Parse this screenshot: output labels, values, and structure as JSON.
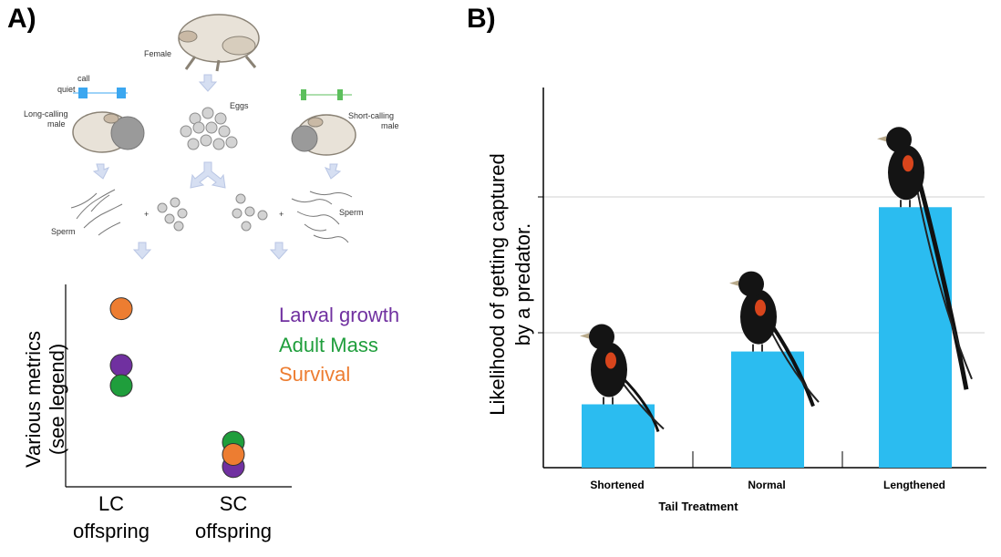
{
  "panels": {
    "a_label": "A)",
    "b_label": "B)"
  },
  "diagram": {
    "female": "Female",
    "eggs": "Eggs",
    "long_male": "Long-calling\nmale",
    "short_male": "Short-calling\nmale",
    "call": "call",
    "quiet": "quiet",
    "sperm_left": "Sperm",
    "sperm_right": "Sperm",
    "plus": "+"
  },
  "colors": {
    "larval": "#7030a0",
    "mass": "#1f9e3c",
    "survival": "#ed7d31",
    "bar": "#2bbcf0",
    "long_call": "#3ba7f0",
    "short_call": "#5cbf5c"
  },
  "chart_data": [
    {
      "type": "scatter",
      "title": "",
      "xlabel": "",
      "ylabel": "Various metrics\n(see legend)",
      "categories": [
        "LC\noffspring",
        "SC\noffspring"
      ],
      "series": [
        {
          "name": "Larval growth",
          "color": "#7030a0",
          "values": [
            0.6,
            0.1
          ]
        },
        {
          "name": "Adult Mass",
          "color": "#1f9e3c",
          "values": [
            0.5,
            0.22
          ]
        },
        {
          "name": "Survival",
          "color": "#ed7d31",
          "values": [
            0.88,
            0.16
          ]
        }
      ],
      "ylim": [
        0,
        1
      ],
      "legend": "right"
    },
    {
      "type": "bar",
      "title": "",
      "xlabel": "Tail Treatment",
      "ylabel": "Likelihood of getting captured\nby a predator.",
      "categories": [
        "Shortened",
        "Normal",
        "Lengthened"
      ],
      "values": [
        0.9,
        1.65,
        3.7
      ],
      "ylim": [
        0,
        5.4
      ],
      "gridlines": [
        2,
        4
      ],
      "grid": true
    }
  ]
}
